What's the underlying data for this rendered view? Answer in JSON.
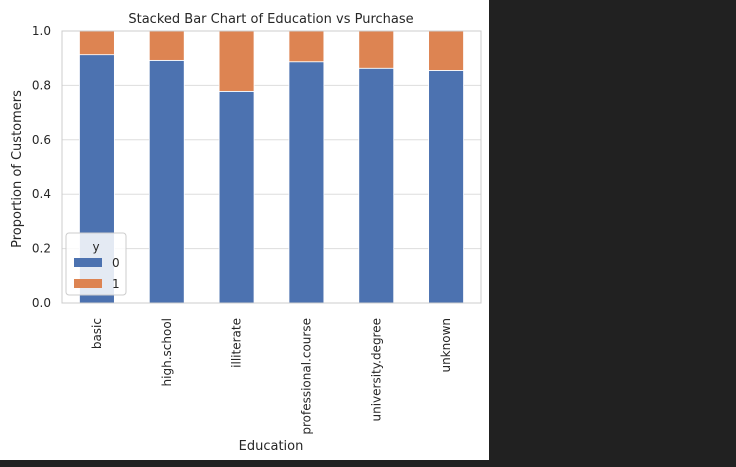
{
  "chart_data": {
    "type": "bar",
    "stacked": true,
    "title": "Stacked Bar Chart of Education vs Purchase",
    "xlabel": "Education",
    "ylabel": "Proportion of Customers",
    "categories": [
      "basic",
      "high.school",
      "illiterate",
      "professional.course",
      "university.degree",
      "unknown"
    ],
    "series": [
      {
        "name": "0",
        "color": "#4c72b0",
        "values": [
          0.913,
          0.892,
          0.778,
          0.887,
          0.863,
          0.855
        ]
      },
      {
        "name": "1",
        "color": "#dd8452",
        "values": [
          0.087,
          0.108,
          0.222,
          0.113,
          0.137,
          0.145
        ]
      }
    ],
    "ylim": [
      0,
      1.0
    ],
    "yticks": [
      "0.0",
      "0.2",
      "0.4",
      "0.6",
      "0.8",
      "1.0"
    ],
    "grid": true,
    "legend": {
      "title": "y",
      "position": "lower-left"
    }
  }
}
